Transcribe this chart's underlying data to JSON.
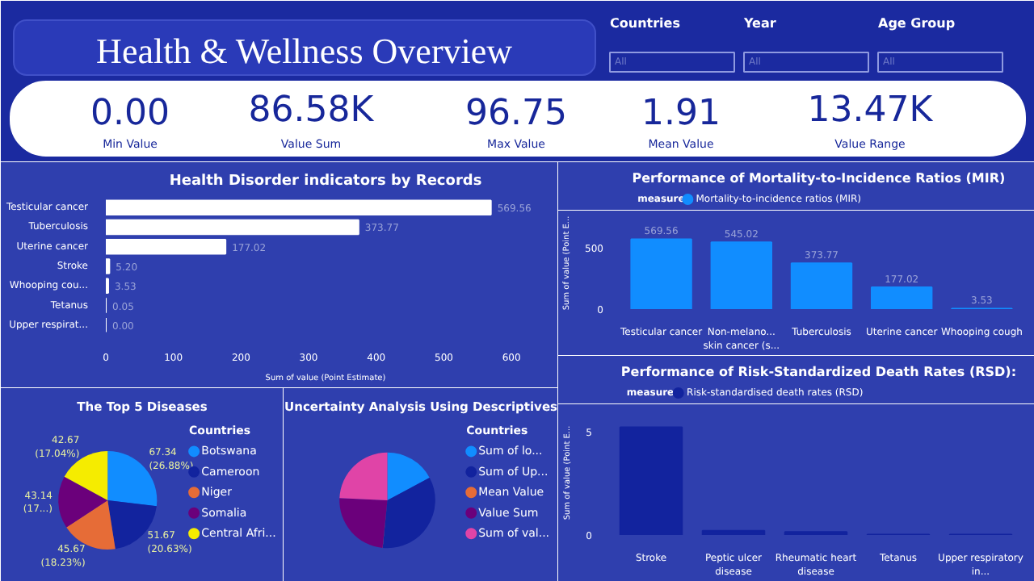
{
  "chart_data": [
    {
      "type": "other",
      "title": "Health & Wellness Overview",
      "annotations": [
        "Countries",
        "All",
        "Year",
        "All",
        "Age Group",
        "All",
        "0.00",
        "Min Value",
        "86.58K",
        "Value Sum",
        "96.75",
        "Max Value",
        "1.91",
        "Mean Value",
        "13.47K",
        "Value Range"
      ]
    },
    {
      "type": "bar",
      "orientation": "horizontal",
      "title": "Health Disorder indicators by Records",
      "xlabel": "Sum of value (Point Estimate)",
      "categories": [
        "Testicular cancer",
        "Tuberculosis",
        "Uterine cancer",
        "Stroke",
        "Whooping cou...",
        "Tetanus",
        "Upper respirat..."
      ],
      "values": [
        569.56,
        373.77,
        177.02,
        5.2,
        3.53,
        0.05,
        0.0
      ],
      "value_labels": [
        "569.56",
        "373.77",
        "177.02",
        "5.20",
        "3.53",
        "0.05",
        "0.00"
      ],
      "color": "#ffffff",
      "xlim": [
        0,
        650
      ],
      "xticks": [
        0,
        100,
        200,
        300,
        400,
        500,
        600
      ],
      "grid": false
    },
    {
      "type": "bar",
      "title": "Performance of Mortality-to-Incidence Ratios (MIR)",
      "ylabel": "Sum of value (Point E...",
      "legend_title": "measure",
      "legend": "top left",
      "categories": [
        "Testicular cancer",
        "Non-melano... skin cancer (s...",
        "Tuberculosis",
        "Uterine cancer",
        "Whooping cough"
      ],
      "series": [
        {
          "name": "Mortality-to-incidence ratios (MIR)",
          "color": "#118dff",
          "values": [
            569.56,
            545.02,
            373.77,
            177.02,
            3.53
          ]
        }
      ],
      "data_labels": true,
      "ylim": [
        0,
        750
      ],
      "yticks": [
        0,
        500
      ],
      "grid": false
    },
    {
      "type": "pie",
      "title": "The Top 5 Diseases",
      "legend_title": "Countries",
      "legend": "right",
      "categories": [
        "Botswana",
        "Cameroon",
        "Niger",
        "Somalia",
        "Central Afri..."
      ],
      "values": [
        67.34,
        51.67,
        45.67,
        43.14,
        42.67
      ],
      "value_labels": [
        "67.34\n(26.88%)",
        "51.67\n(20.63%)",
        "45.67\n(18.23%)",
        "43.14\n(17...)",
        "42.67\n(17.04%)"
      ],
      "colors": [
        "#118dff",
        "#12239e",
        "#e66c37",
        "#6b007b",
        "#f5ec00"
      ]
    },
    {
      "type": "pie",
      "title": "Uncertainty Analysis Using Descriptives",
      "legend_title": "Countries",
      "legend": "right",
      "categories": [
        "Sum of lo...",
        "Sum of Up...",
        "Mean Value",
        "Value Sum",
        "Sum of val..."
      ],
      "values": [
        17.16,
        34.4,
        0.07,
        24.1,
        24.27
      ],
      "colors": [
        "#118dff",
        "#12239e",
        "#e66c37",
        "#6b007b",
        "#e044a7"
      ]
    },
    {
      "type": "bar",
      "title": "Performance of Risk-Standardized Death Rates (RSD):",
      "ylabel": "Sum of value (Point E...",
      "legend_title": "measure",
      "legend": "top left",
      "categories": [
        "Stroke",
        "Peptic ulcer disease",
        "Rheumatic heart disease",
        "Tetanus",
        "Upper respiratory in..."
      ],
      "series": [
        {
          "name": "Risk-standardised death rates (RSD)",
          "color": "#12239e",
          "values": [
            5.2,
            0.2,
            0.15,
            0.02,
            0.02
          ]
        }
      ],
      "ylim": [
        0,
        6
      ],
      "yticks": [
        0,
        5
      ],
      "grid": false
    }
  ]
}
